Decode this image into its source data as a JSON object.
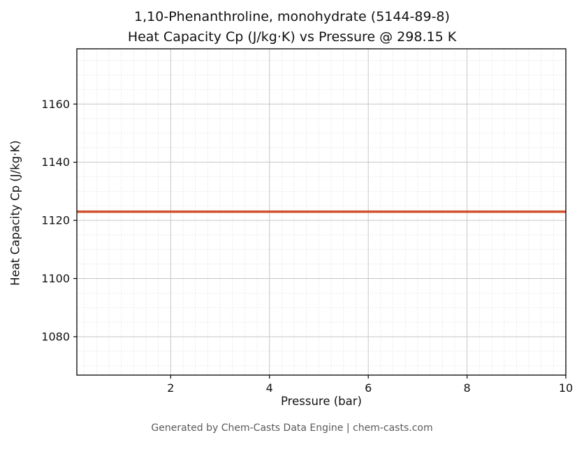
{
  "chart_data": {
    "type": "line",
    "title_line1": "1,10-Phenanthroline, monohydrate (5144-89-8)",
    "title_line2": "Heat Capacity Cp (J/kg·K) vs Pressure @ 298.15 K",
    "xlabel": "Pressure (bar)",
    "ylabel": "Heat Capacity Cp (J/kg·K)",
    "footer": "Generated by Chem-Casts Data Engine | chem-casts.com",
    "xlim": [
      0.1,
      10
    ],
    "ylim": [
      1066.8,
      1179
    ],
    "x_ticks": [
      2,
      4,
      6,
      8,
      10
    ],
    "y_ticks": [
      1080,
      1100,
      1120,
      1140,
      1160
    ],
    "x_minor_step": 0.25,
    "y_minor_step": 5,
    "grid": true,
    "legend": "none",
    "line_color": "#d0512e",
    "line_width": 3.5,
    "series": [
      {
        "name": "Heat Capacity Cp",
        "x": [
          0.1,
          10
        ],
        "y": [
          1123,
          1123
        ]
      }
    ]
  }
}
